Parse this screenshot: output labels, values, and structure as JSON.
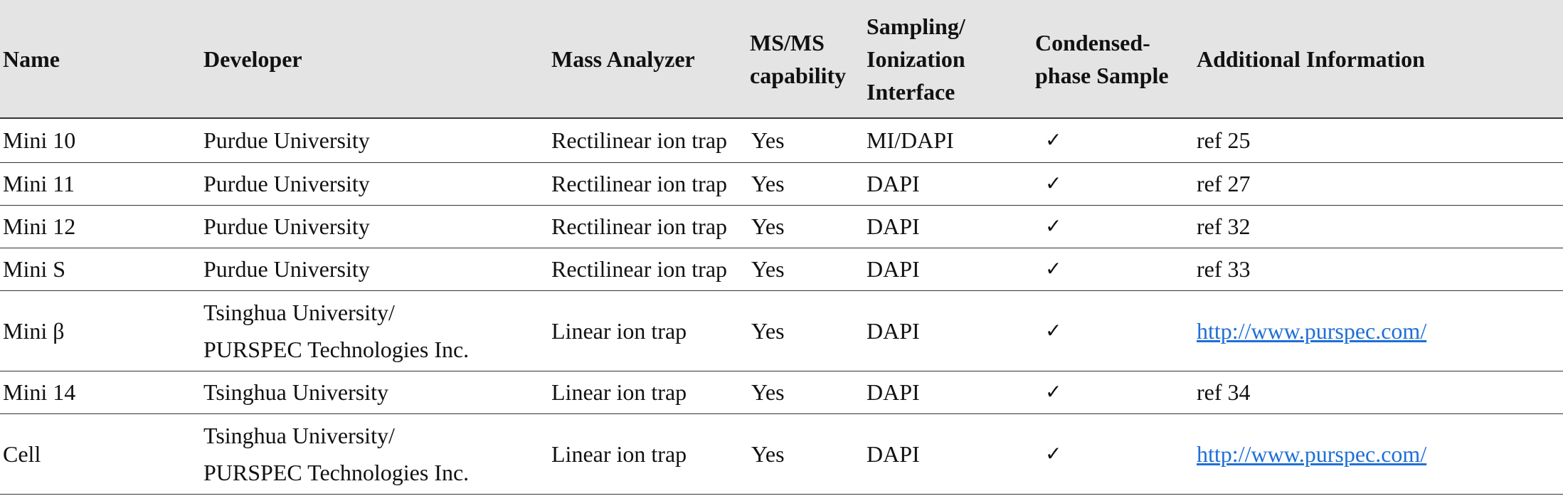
{
  "columns": [
    "Name",
    "Developer",
    "Mass Analyzer",
    "MS/MS capability",
    "Sampling/ Ionization Interface",
    "Condensed-phase Sample",
    "Additional Information"
  ],
  "rows": [
    {
      "name": "Mini 10",
      "developer_line1": "Purdue University",
      "developer_line2": "",
      "analyzer": "Rectilinear ion trap",
      "msms": "Yes",
      "interface": "MI/DAPI",
      "condensed": "✓",
      "info": "ref 25"
    },
    {
      "name": "Mini 11",
      "developer_line1": "Purdue University",
      "developer_line2": "",
      "analyzer": "Rectilinear ion trap",
      "msms": "Yes",
      "interface": "DAPI",
      "condensed": "✓",
      "info": "ref 27"
    },
    {
      "name": "Mini 12",
      "developer_line1": "Purdue University",
      "developer_line2": "",
      "analyzer": "Rectilinear ion trap",
      "msms": "Yes",
      "interface": "DAPI",
      "condensed": "✓",
      "info": "ref 32"
    },
    {
      "name": "Mini S",
      "developer_line1": "Purdue University",
      "developer_line2": "",
      "analyzer": "Rectilinear ion trap",
      "msms": "Yes",
      "interface": "DAPI",
      "condensed": "✓",
      "info": "ref 33"
    },
    {
      "name": "Mini β",
      "developer_line1": "Tsinghua University/",
      "developer_line2": "PURSPEC Technologies Inc.",
      "analyzer": "Linear ion trap",
      "msms": "Yes",
      "interface": "DAPI",
      "condensed": "✓",
      "info": "http://www.purspec.com/"
    },
    {
      "name": "Mini 14",
      "developer_line1": "Tsinghua University",
      "developer_line2": "",
      "analyzer": "Linear ion trap",
      "msms": "Yes",
      "interface": "DAPI",
      "condensed": "✓",
      "info": "ref 34"
    },
    {
      "name": "Cell",
      "developer_line1": "Tsinghua University/",
      "developer_line2": "PURSPEC Technologies Inc.",
      "analyzer": "Linear ion trap",
      "msms": "Yes",
      "interface": "DAPI",
      "condensed": "✓",
      "info": "http://www.purspec.com/"
    }
  ]
}
